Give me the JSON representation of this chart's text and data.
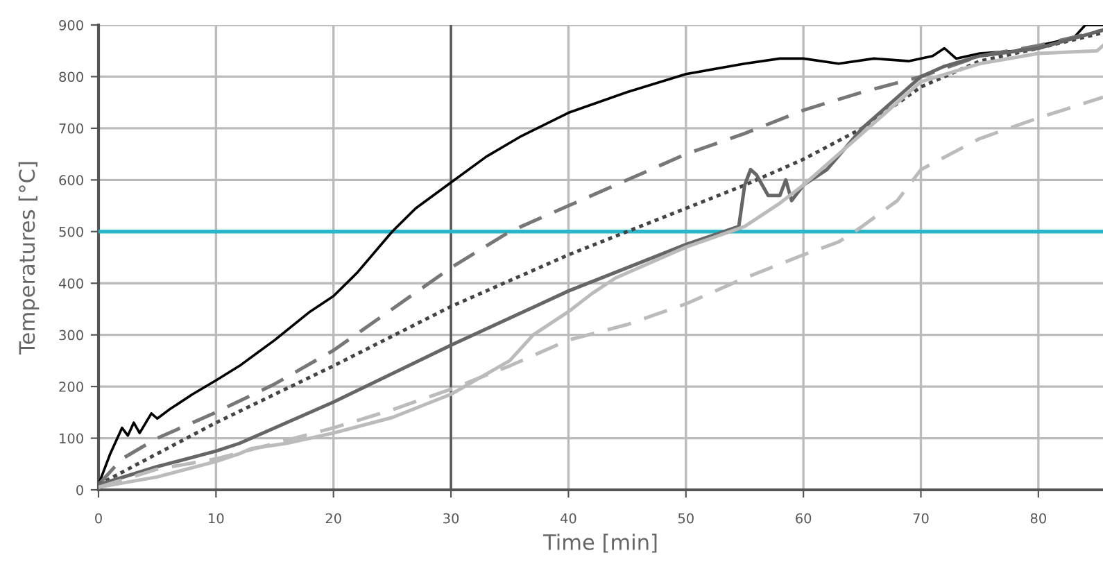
{
  "chart_data": {
    "type": "line",
    "xlabel": "Time [min]",
    "ylabel": "Temperatures [°C]",
    "xlim": [
      0,
      85.5
    ],
    "xticks": [
      0,
      10,
      20,
      30,
      40,
      50,
      60,
      70,
      80
    ],
    "ylim": [
      0,
      900
    ],
    "yticks": [
      0,
      100,
      200,
      300,
      400,
      500,
      600,
      700,
      800,
      900
    ],
    "grid": true,
    "marker": "none",
    "ref_lines": [
      {
        "axis": "y",
        "value": 500,
        "color": "#29b6c9"
      },
      {
        "axis": "x",
        "value": 30,
        "color": "#555555"
      }
    ],
    "series": [
      {
        "color": "#000000",
        "line_style": "solid",
        "x": [
          0,
          1,
          2,
          2.5,
          3,
          3.5,
          4.5,
          5,
          6,
          8,
          10,
          12,
          15,
          18,
          20,
          22,
          25,
          27,
          30,
          33,
          36,
          40,
          45,
          50,
          55,
          58,
          60,
          63,
          66,
          69,
          71,
          72,
          73,
          75,
          78,
          80,
          83,
          84,
          85.5
        ],
        "values": [
          10,
          70,
          120,
          105,
          130,
          110,
          148,
          138,
          155,
          185,
          212,
          240,
          290,
          345,
          375,
          420,
          500,
          545,
          595,
          645,
          685,
          730,
          770,
          805,
          825,
          835,
          835,
          825,
          835,
          830,
          840,
          855,
          835,
          845,
          850,
          860,
          875,
          900,
          900
        ]
      },
      {
        "color": "#777777",
        "line_style": "dashed",
        "x": [
          0,
          2,
          5,
          10,
          15,
          20,
          25,
          30,
          35,
          40,
          45,
          50,
          55,
          60,
          65,
          70,
          75,
          80,
          85.5
        ],
        "values": [
          10,
          60,
          100,
          150,
          205,
          270,
          350,
          430,
          500,
          550,
          600,
          650,
          690,
          735,
          770,
          800,
          840,
          860,
          890
        ]
      },
      {
        "color": "#444444",
        "line_style": "dotted",
        "x": [
          0,
          5,
          10,
          20,
          30,
          40,
          45,
          50,
          55,
          60,
          65,
          70,
          75,
          80,
          85.5
        ],
        "values": [
          10,
          70,
          130,
          240,
          355,
          455,
          500,
          545,
          590,
          640,
          700,
          780,
          830,
          855,
          885
        ]
      },
      {
        "color": "#666666",
        "line_style": "solid",
        "x": [
          0,
          5,
          10,
          12,
          20,
          30,
          40,
          45,
          50,
          54.5,
          55,
          55.5,
          56,
          57,
          58,
          58.5,
          59,
          60,
          62,
          65,
          67,
          70,
          72,
          75,
          80,
          85.5
        ],
        "values": [
          10,
          45,
          75,
          90,
          170,
          280,
          385,
          430,
          475,
          510,
          590,
          620,
          610,
          570,
          570,
          600,
          560,
          590,
          620,
          700,
          740,
          800,
          820,
          840,
          855,
          890
        ]
      },
      {
        "color": "#bbbbbb",
        "line_style": "solid",
        "x": [
          0,
          5,
          10,
          12,
          13,
          16,
          20,
          25,
          30,
          35,
          37,
          40,
          42,
          44,
          50,
          55,
          58,
          60,
          65,
          70,
          75,
          80,
          85,
          85.5
        ],
        "values": [
          5,
          25,
          55,
          70,
          80,
          90,
          110,
          140,
          185,
          250,
          300,
          345,
          380,
          410,
          470,
          510,
          555,
          590,
          690,
          790,
          825,
          845,
          850,
          860
        ]
      },
      {
        "color": "#bbbbbb",
        "line_style": "dashed",
        "x": [
          0,
          5,
          10,
          15,
          20,
          25,
          30,
          35,
          40,
          45,
          50,
          55,
          60,
          63,
          65,
          68,
          70,
          75,
          80,
          85.5
        ],
        "values": [
          5,
          40,
          60,
          90,
          120,
          155,
          195,
          240,
          290,
          320,
          360,
          410,
          455,
          480,
          510,
          560,
          620,
          680,
          720,
          760
        ]
      }
    ]
  }
}
